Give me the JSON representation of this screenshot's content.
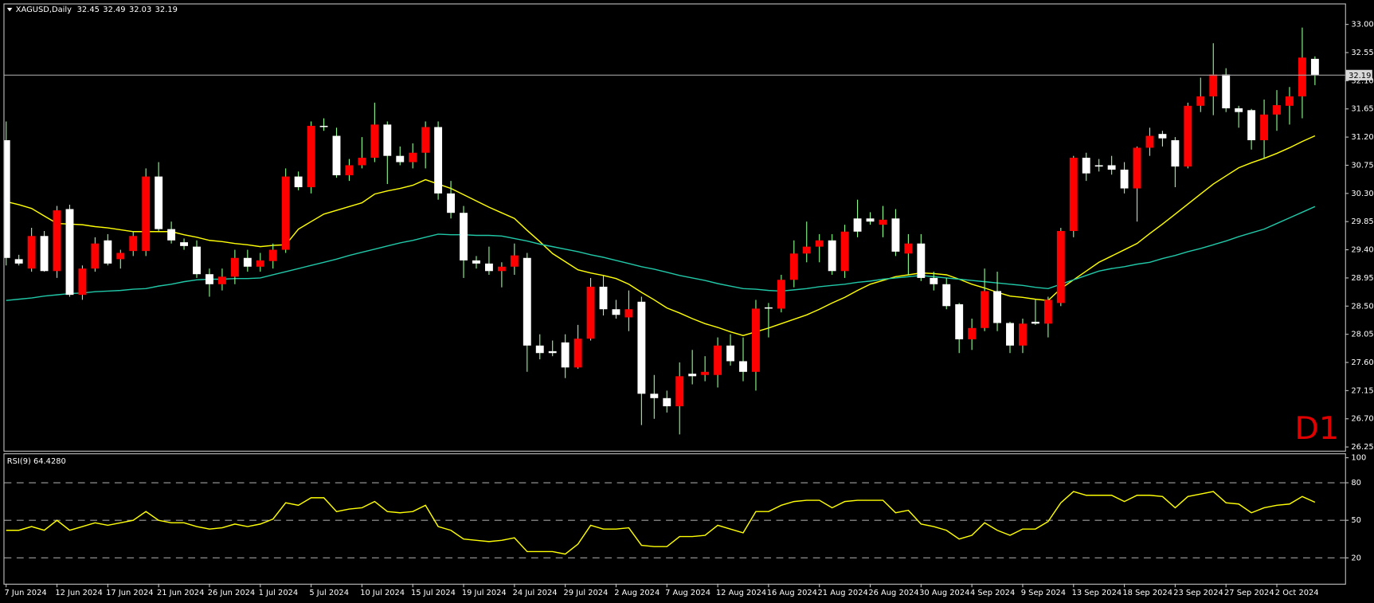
{
  "chart_data": [
    {
      "type": "candlestick",
      "title": "XAGUSD,Daily",
      "annotation": "D1",
      "categories": [
        "7 Jun 2024",
        null,
        null,
        null,
        "12 Jun 2024",
        null,
        null,
        null,
        "17 Jun 2024",
        null,
        null,
        null,
        "21 Jun 2024",
        null,
        null,
        null,
        "26 Jun 2024",
        null,
        null,
        null,
        "1 Jul 2024",
        null,
        null,
        null,
        "5 Jul 2024",
        null,
        null,
        null,
        "10 Jul 2024",
        null,
        null,
        null,
        "15 Jul 2024",
        null,
        null,
        null,
        "19 Jul 2024",
        null,
        null,
        null,
        "24 Jul 2024",
        null,
        null,
        null,
        "29 Jul 2024",
        null,
        null,
        null,
        "2 Aug 2024",
        null,
        null,
        null,
        "7 Aug 2024",
        null,
        null,
        null,
        "12 Aug 2024",
        null,
        null,
        null,
        "16 Aug 2024",
        null,
        null,
        null,
        "21 Aug 2024",
        null,
        null,
        null,
        "26 Aug 2024",
        null,
        null,
        null,
        "30 Aug 2024",
        null,
        null,
        null,
        "4 Sep 2024",
        null,
        null,
        null,
        "9 Sep 2024",
        null,
        null,
        null,
        "13 Sep 2024",
        null,
        null,
        null,
        "18 Sep 2024",
        null,
        null,
        null,
        "23 Sep 2024",
        null,
        null,
        null,
        "27 Sep 2024",
        null,
        null,
        null,
        "2 Oct 2024",
        null,
        null,
        null
      ],
      "open": [
        31.15,
        29.25,
        29.1,
        29.62,
        29.06,
        30.05,
        28.68,
        29.1,
        29.55,
        29.25,
        29.38,
        29.38,
        30.57,
        29.73,
        29.52,
        29.45,
        29.01,
        28.85,
        28.97,
        29.27,
        29.13,
        29.22,
        29.4,
        30.57,
        30.4,
        31.38,
        31.22,
        30.59,
        30.75,
        30.87,
        31.4,
        30.9,
        30.8,
        30.95,
        31.36,
        30.3,
        29.99,
        29.23,
        29.18,
        29.06,
        29.13,
        29.27,
        27.87,
        27.78,
        27.92,
        27.52,
        27.98,
        28.81,
        28.45,
        28.32,
        28.57,
        27.1,
        27.03,
        26.9,
        27.42,
        27.4,
        27.4,
        27.87,
        27.62,
        27.45,
        28.48,
        28.46,
        28.92,
        29.34,
        29.45,
        29.55,
        29.06,
        29.9,
        29.9,
        29.8,
        29.9,
        29.34,
        29.5,
        28.95,
        28.85,
        28.53,
        27.97,
        28.15,
        28.74,
        28.23,
        27.87,
        28.25,
        28.22,
        28.55,
        29.7,
        30.87,
        30.75,
        30.75,
        30.68,
        30.38,
        31.03,
        31.25,
        31.15,
        30.73,
        31.7,
        31.85,
        32.2,
        31.66,
        31.63,
        31.15,
        31.56,
        31.7,
        31.85,
        32.45
      ],
      "high": [
        31.45,
        29.32,
        29.75,
        29.7,
        30.1,
        30.12,
        29.15,
        29.6,
        29.65,
        29.4,
        29.7,
        30.7,
        30.8,
        29.85,
        29.58,
        29.55,
        29.1,
        29.1,
        29.4,
        29.4,
        29.35,
        29.5,
        30.7,
        30.65,
        31.45,
        31.5,
        31.35,
        30.85,
        31.2,
        31.75,
        31.45,
        31.05,
        31.1,
        31.45,
        31.45,
        30.5,
        30.1,
        29.3,
        29.45,
        29.2,
        29.5,
        29.35,
        28.05,
        27.95,
        28.05,
        28.2,
        28.95,
        29.0,
        28.6,
        28.75,
        28.65,
        27.4,
        27.15,
        27.6,
        27.8,
        27.7,
        28.0,
        28.05,
        28.0,
        28.6,
        28.55,
        29.0,
        29.55,
        29.85,
        29.65,
        29.65,
        29.8,
        30.2,
        30.0,
        30.1,
        30.05,
        29.65,
        29.65,
        29.05,
        28.95,
        28.55,
        28.3,
        29.1,
        29.05,
        28.25,
        28.3,
        28.6,
        28.65,
        29.75,
        30.9,
        30.95,
        30.85,
        30.9,
        30.8,
        31.05,
        31.35,
        31.3,
        31.2,
        31.75,
        32.15,
        32.7,
        32.3,
        31.7,
        31.65,
        31.8,
        31.95,
        32.0,
        32.95,
        32.49
      ],
      "low": [
        29.15,
        29.15,
        29.05,
        29.05,
        28.95,
        28.65,
        28.6,
        29.05,
        29.15,
        29.1,
        29.3,
        29.3,
        29.7,
        29.5,
        29.4,
        28.95,
        28.65,
        28.75,
        28.85,
        29.05,
        29.05,
        29.1,
        29.35,
        30.35,
        30.3,
        31.3,
        30.55,
        30.5,
        30.7,
        30.8,
        30.45,
        30.75,
        30.7,
        30.7,
        30.2,
        29.9,
        28.95,
        29.1,
        29.0,
        28.8,
        29.0,
        27.45,
        27.65,
        27.7,
        27.35,
        27.5,
        27.95,
        28.35,
        28.3,
        28.1,
        26.6,
        26.7,
        26.8,
        26.45,
        27.25,
        27.3,
        27.2,
        27.55,
        27.3,
        27.15,
        28.0,
        28.4,
        28.8,
        29.2,
        29.2,
        29.0,
        28.95,
        29.6,
        29.8,
        29.6,
        29.3,
        29.0,
        28.9,
        28.75,
        28.45,
        27.75,
        27.8,
        28.1,
        28.1,
        27.75,
        27.75,
        28.2,
        28.0,
        28.5,
        29.6,
        30.5,
        30.65,
        30.6,
        30.3,
        29.85,
        30.9,
        31.05,
        30.4,
        30.7,
        31.6,
        31.55,
        31.6,
        31.35,
        31.0,
        30.85,
        31.3,
        31.4,
        31.5,
        32.03
      ],
      "close": [
        29.27,
        29.18,
        29.62,
        29.06,
        30.03,
        28.68,
        29.1,
        29.5,
        29.18,
        29.35,
        29.62,
        30.57,
        29.73,
        29.55,
        29.46,
        29.01,
        28.85,
        28.97,
        29.27,
        29.13,
        29.23,
        29.4,
        30.57,
        30.4,
        31.38,
        31.36,
        30.59,
        30.75,
        30.87,
        31.4,
        30.9,
        30.8,
        30.95,
        31.36,
        30.3,
        29.99,
        29.23,
        29.18,
        29.06,
        29.13,
        29.31,
        27.87,
        27.75,
        27.75,
        27.52,
        27.98,
        28.81,
        28.45,
        28.36,
        28.45,
        27.1,
        27.03,
        26.9,
        27.38,
        27.38,
        27.45,
        27.87,
        27.62,
        27.45,
        28.46,
        28.46,
        28.92,
        29.34,
        29.45,
        29.55,
        29.06,
        29.69,
        29.69,
        29.85,
        29.88,
        29.37,
        29.5,
        28.95,
        28.85,
        28.5,
        27.97,
        28.15,
        28.74,
        28.23,
        27.87,
        28.22,
        28.22,
        28.6,
        29.7,
        30.87,
        30.62,
        30.73,
        30.68,
        30.38,
        31.03,
        31.22,
        31.18,
        30.73,
        31.7,
        31.85,
        32.2,
        31.66,
        31.6,
        31.15,
        31.56,
        31.71,
        31.85,
        32.47,
        32.19
      ],
      "up_color": "#ff0000",
      "down_color": "#ffffff",
      "wick_color": "#8fff8f",
      "overlays": [
        {
          "color": "#ffff00",
          "values": [
            30.17,
            30.12,
            30.06,
            29.94,
            29.82,
            29.81,
            29.8,
            29.77,
            29.75,
            29.72,
            29.69,
            29.69,
            29.69,
            29.69,
            29.64,
            29.6,
            29.55,
            29.53,
            29.5,
            29.48,
            29.45,
            29.47,
            29.48,
            29.73,
            29.85,
            29.97,
            30.03,
            30.09,
            30.15,
            30.29,
            30.34,
            30.38,
            30.43,
            30.52,
            30.45,
            30.38,
            30.28,
            30.18,
            30.08,
            29.99,
            29.9,
            29.71,
            29.53,
            29.34,
            29.21,
            29.08,
            29.03,
            28.99,
            28.94,
            28.85,
            28.72,
            28.6,
            28.47,
            28.39,
            28.3,
            28.22,
            28.16,
            28.09,
            28.03,
            28.09,
            28.15,
            28.22,
            28.29,
            28.36,
            28.45,
            28.55,
            28.64,
            28.75,
            28.85,
            28.91,
            28.97,
            29.0,
            29.03,
            29.02,
            29.0,
            28.93,
            28.85,
            28.79,
            28.72,
            28.66,
            28.64,
            28.61,
            28.59,
            28.78,
            28.92,
            29.06,
            29.2,
            29.3,
            29.4,
            29.5,
            29.66,
            29.81,
            29.97,
            30.13,
            30.29,
            30.45,
            30.58,
            30.71,
            30.79,
            30.86,
            30.94,
            31.03,
            31.13,
            31.22
          ]
        },
        {
          "color": "#20c8a8",
          "values": [
            28.59,
            28.61,
            28.63,
            28.66,
            28.68,
            28.7,
            28.71,
            28.73,
            28.74,
            28.75,
            28.77,
            28.78,
            28.82,
            28.85,
            28.89,
            28.92,
            28.93,
            28.93,
            28.94,
            28.94,
            28.95,
            29.0,
            29.05,
            29.1,
            29.15,
            29.2,
            29.25,
            29.31,
            29.36,
            29.41,
            29.46,
            29.51,
            29.55,
            29.6,
            29.65,
            29.64,
            29.64,
            29.63,
            29.63,
            29.62,
            29.58,
            29.54,
            29.49,
            29.45,
            29.41,
            29.37,
            29.32,
            29.28,
            29.23,
            29.18,
            29.13,
            29.09,
            29.04,
            28.99,
            28.95,
            28.91,
            28.86,
            28.82,
            28.78,
            28.77,
            28.75,
            28.74,
            28.76,
            28.78,
            28.81,
            28.83,
            28.85,
            28.88,
            28.9,
            28.93,
            28.95,
            28.97,
            28.99,
            28.97,
            28.95,
            28.93,
            28.91,
            28.89,
            28.87,
            28.85,
            28.83,
            28.8,
            28.78,
            28.85,
            28.92,
            28.99,
            29.06,
            29.1,
            29.13,
            29.17,
            29.2,
            29.26,
            29.31,
            29.37,
            29.42,
            29.48,
            29.54,
            29.61,
            29.67,
            29.73,
            29.82,
            29.91,
            30.0,
            30.09
          ]
        }
      ],
      "ylim": [
        26.19,
        33.32
      ],
      "yticks": [
        {
          "value": 33,
          "label": "33.00"
        },
        32.55,
        {
          "value": 32.1,
          "label": "32.10"
        },
        31.65,
        {
          "value": 31.2,
          "label": "31.20"
        },
        30.75,
        {
          "value": 30.3,
          "label": "30.30"
        },
        29.85,
        {
          "value": 29.4,
          "label": "29.40"
        },
        28.95,
        {
          "value": 28.5,
          "label": "28.50"
        },
        28.05,
        {
          "value": 27.6,
          "label": "27.60"
        },
        27.15,
        {
          "value": 26.7,
          "label": "26.70"
        },
        26.25
      ],
      "price_line_color": "#a0a0a0"
    },
    {
      "type": "line",
      "title": "RSI(9) 64.4280",
      "color": "#ffff00",
      "values": [
        42,
        42,
        45,
        42,
        50,
        42,
        45,
        48,
        46,
        48,
        50,
        57,
        50,
        48,
        48,
        45,
        43,
        44,
        47,
        45,
        47,
        51,
        64,
        62,
        68,
        68,
        57,
        59,
        60,
        65,
        57,
        56,
        57,
        62,
        45,
        42,
        35,
        34,
        33,
        34,
        36,
        25,
        25,
        25,
        23,
        31,
        46,
        43,
        43,
        44,
        30,
        29,
        29,
        37,
        37,
        38,
        46,
        43,
        40,
        57,
        57,
        62,
        65,
        66,
        66,
        60,
        65,
        66,
        66,
        66,
        56,
        58,
        47,
        45,
        42,
        35,
        38,
        48,
        42,
        38,
        43,
        43,
        49,
        64,
        73,
        70,
        70,
        70,
        65,
        70,
        70,
        69,
        60,
        69,
        71,
        73,
        64,
        63,
        56,
        60,
        62,
        63,
        69,
        64.428
      ],
      "ylim": [
        0,
        100
      ],
      "yticks": [
        20,
        50,
        80,
        100
      ],
      "levels": [
        20,
        50,
        80
      ]
    }
  ]
}
